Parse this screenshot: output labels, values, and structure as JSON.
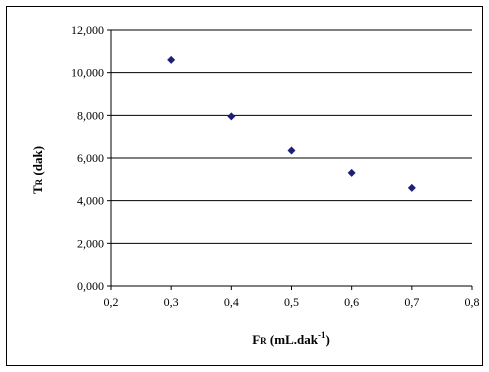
{
  "chart_data": {
    "type": "scatter",
    "title": "",
    "xlabel_main": "F",
    "xlabel_sub": "R",
    "xlabel_rest": " (mL.dak",
    "xlabel_sup": "-1",
    "xlabel_close": ")",
    "ylabel_main": "T",
    "ylabel_sub": "R",
    "ylabel_rest": " (dak)",
    "xlim": [
      0.2,
      0.8
    ],
    "ylim": [
      0,
      12
    ],
    "x_ticks": [
      0.2,
      0.3,
      0.4,
      0.5,
      0.6,
      0.7,
      0.8
    ],
    "x_tick_labels": [
      "0,2",
      "0,3",
      "0,4",
      "0,5",
      "0,6",
      "0,7",
      "0,8"
    ],
    "y_ticks": [
      0,
      2,
      4,
      6,
      8,
      10,
      12
    ],
    "y_tick_labels": [
      "0,000",
      "2,000",
      "4,000",
      "6,000",
      "8,000",
      "10,000",
      "12,000"
    ],
    "grid": "horizontal",
    "legend": "none",
    "marker_color": "#1f1f7a",
    "series": [
      {
        "x": [
          0.3,
          0.4,
          0.5,
          0.6,
          0.7
        ],
        "y": [
          10.6,
          7.95,
          6.35,
          5.3,
          4.6
        ]
      }
    ]
  }
}
